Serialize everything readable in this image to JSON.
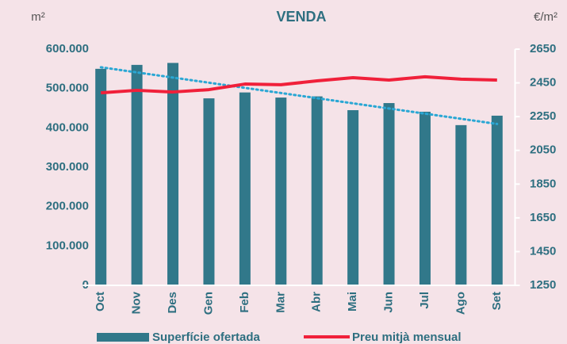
{
  "chart_data": {
    "type": "bar-line",
    "title": "VENDA",
    "y_label": "m²",
    "y2_label": "€/m²",
    "categories": [
      "Oct",
      "Nov",
      "Des",
      "Gen",
      "Feb",
      "Mar",
      "Abr",
      "Mai",
      "Jun",
      "Jul",
      "Ago",
      "Set"
    ],
    "series": [
      {
        "name": "Superfície ofertada",
        "type": "bar",
        "color": "#31788a",
        "axis": "y",
        "values": [
          550000,
          560000,
          565000,
          475000,
          490000,
          477000,
          480000,
          445000,
          463000,
          441000,
          407000,
          431000
        ]
      },
      {
        "name": "Preu mitjà mensual",
        "type": "line",
        "color": "#f0203a",
        "axis": "y2",
        "values": [
          2391,
          2406,
          2396,
          2410,
          2443,
          2439,
          2462,
          2481,
          2467,
          2486,
          2472,
          2467
        ]
      }
    ],
    "trendline": {
      "series": 0,
      "color": "#2aa7d4"
    },
    "ylim": [
      0,
      600000
    ],
    "yticks": [
      0,
      {
        "value": 100000,
        "label": "100.000"
      },
      {
        "value": 200000,
        "label": "200.000"
      },
      {
        "value": 300000,
        "label": "300.000"
      },
      {
        "value": 400000,
        "label": "400.000"
      },
      {
        "value": 500000,
        "label": "500.000"
      },
      {
        "value": 600000,
        "label": "600.000"
      }
    ],
    "y2lim": [
      1250,
      2650
    ],
    "y2ticks": [
      1250,
      1450,
      1650,
      1850,
      2050,
      2250,
      2450,
      2650
    ],
    "legend": "bottom"
  }
}
